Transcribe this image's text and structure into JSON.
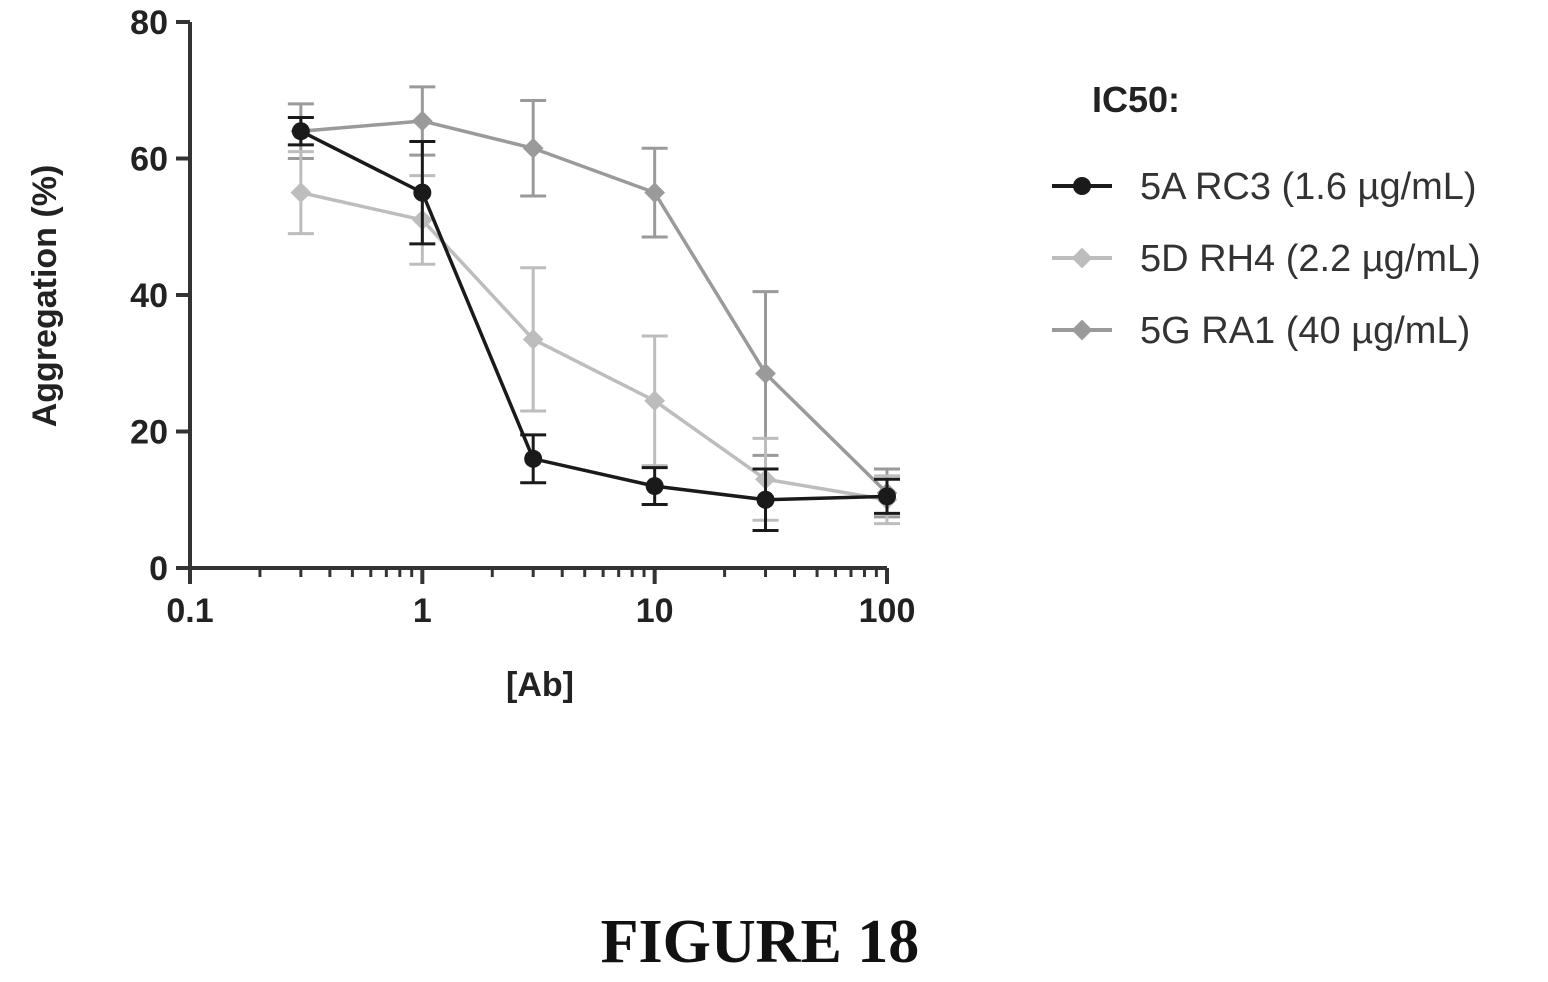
{
  "chart_data": {
    "type": "line",
    "xscale": "log",
    "x": [
      0.3,
      1,
      3,
      10,
      30,
      100
    ],
    "xlim": [
      0.1,
      100
    ],
    "ylim": [
      0,
      80
    ],
    "xticks": [
      0.1,
      1,
      10,
      100
    ],
    "xtick_labels": [
      "0.1",
      "1",
      "10",
      "100"
    ],
    "yticks": [
      0,
      20,
      40,
      60,
      80
    ],
    "ytick_labels": [
      "0",
      "20",
      "40",
      "60",
      "80"
    ],
    "xlabel": "[Ab]",
    "ylabel": "Aggregation (%)",
    "legend_heading": "IC50:",
    "legend_position": "right",
    "grid": false,
    "series": [
      {
        "name": "5A RC3 (1.6 µg/mL)",
        "color": "#1a1a1a",
        "marker": "circle",
        "values": [
          64,
          55,
          16,
          12,
          10,
          10.5
        ],
        "errors": [
          2,
          7.5,
          3.5,
          2.7,
          4.5,
          2.5
        ]
      },
      {
        "name": "5D RH4 (2.2 µg/mL)",
        "color": "#bdbdbd",
        "marker": "diamond",
        "values": [
          55,
          51,
          33.5,
          24.5,
          13,
          10
        ],
        "errors": [
          6,
          6.5,
          10.5,
          9.5,
          6,
          3.5
        ]
      },
      {
        "name": "5G RA1 (40 µg/mL)",
        "color": "#9a9a9a",
        "marker": "diamond",
        "values": [
          64,
          65.5,
          61.5,
          55,
          28.5,
          11
        ],
        "errors": [
          4,
          5,
          7,
          6.5,
          12,
          3.5
        ]
      }
    ]
  },
  "figure_caption": "FIGURE 18"
}
